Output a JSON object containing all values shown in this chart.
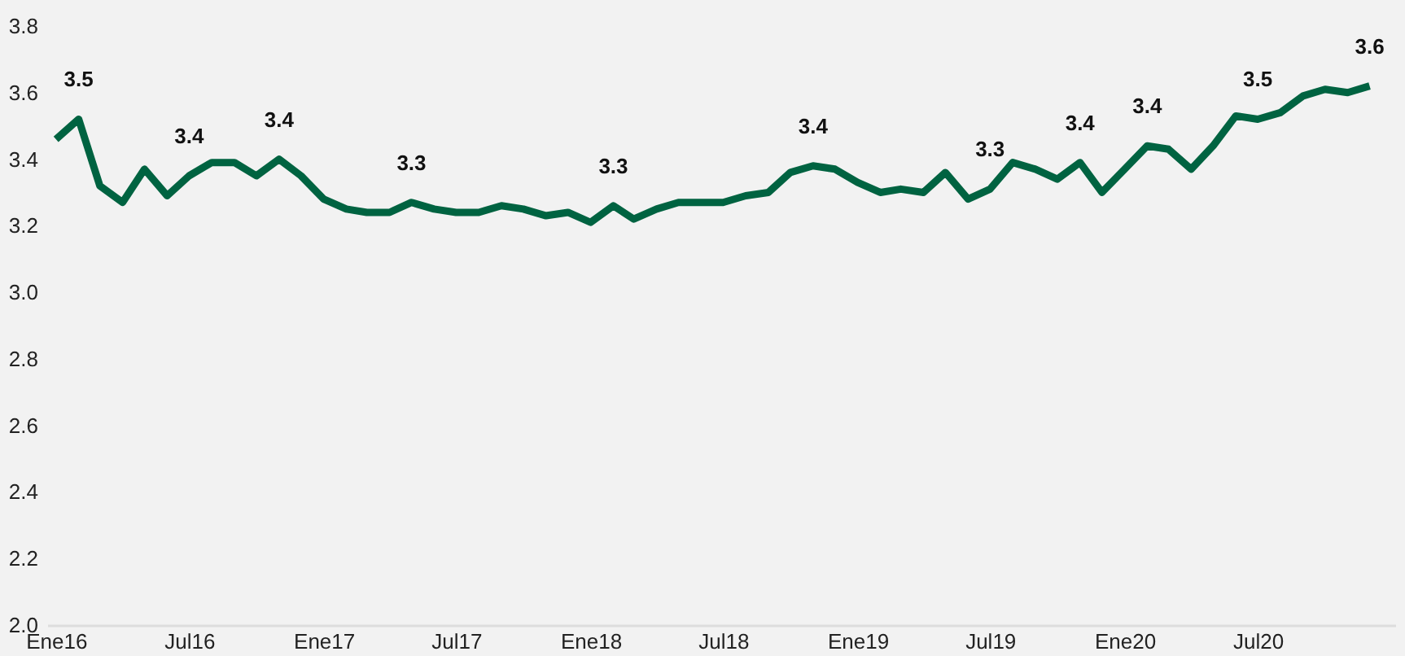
{
  "chart_data": {
    "type": "line",
    "x": [
      "2016-01",
      "2016-02",
      "2016-03",
      "2016-04",
      "2016-05",
      "2016-06",
      "2016-07",
      "2016-08",
      "2016-09",
      "2016-10",
      "2016-11",
      "2016-12",
      "2017-01",
      "2017-02",
      "2017-03",
      "2017-04",
      "2017-05",
      "2017-06",
      "2017-07",
      "2017-08",
      "2017-09",
      "2017-10",
      "2017-11",
      "2017-12",
      "2018-01",
      "2018-02",
      "2018-03",
      "2018-04",
      "2018-05",
      "2018-06",
      "2018-07",
      "2018-08",
      "2018-09",
      "2018-10",
      "2018-11",
      "2018-12",
      "2019-01",
      "2019-02",
      "2019-03",
      "2019-04",
      "2019-05",
      "2019-06",
      "2019-07",
      "2019-08",
      "2019-09",
      "2019-10",
      "2019-11",
      "2019-12",
      "2020-01",
      "2020-02",
      "2020-03",
      "2020-04",
      "2020-05",
      "2020-06",
      "2020-07",
      "2020-08",
      "2020-09",
      "2020-10",
      "2020-11",
      "2020-12"
    ],
    "series": [
      {
        "color": "#006341",
        "values": [
          3.46,
          3.52,
          3.32,
          3.27,
          3.37,
          3.29,
          3.35,
          3.39,
          3.39,
          3.35,
          3.4,
          3.35,
          3.28,
          3.25,
          3.24,
          3.24,
          3.27,
          3.25,
          3.24,
          3.24,
          3.26,
          3.25,
          3.23,
          3.24,
          3.21,
          3.26,
          3.22,
          3.25,
          3.27,
          3.27,
          3.27,
          3.29,
          3.3,
          3.36,
          3.38,
          3.37,
          3.33,
          3.3,
          3.31,
          3.3,
          3.36,
          3.28,
          3.31,
          3.39,
          3.37,
          3.34,
          3.39,
          3.3,
          3.37,
          3.44,
          3.43,
          3.37,
          3.44,
          3.53,
          3.52,
          3.54,
          3.59,
          3.61,
          3.6,
          3.62
        ]
      }
    ],
    "xlim": [
      "2015-12-20",
      "2021-01-05"
    ],
    "xticks": [
      {
        "value": "2016-01",
        "label": "Ene16"
      },
      {
        "value": "2016-07",
        "label": "Jul16"
      },
      {
        "value": "2017-01",
        "label": "Ene17"
      },
      {
        "value": "2017-07",
        "label": "Jul17"
      },
      {
        "value": "2018-01",
        "label": "Ene18"
      },
      {
        "value": "2018-07",
        "label": "Jul18"
      },
      {
        "value": "2019-01",
        "label": "Ene19"
      },
      {
        "value": "2019-07",
        "label": "Jul19"
      },
      {
        "value": "2020-01",
        "label": "Ene20"
      },
      {
        "value": "2020-07",
        "label": "Jul20"
      }
    ],
    "ylim": [
      2.0,
      3.8
    ],
    "yticks": [
      {
        "value": 2,
        "label": "2.0"
      },
      2.2,
      2.4,
      2.6,
      2.8,
      {
        "value": 3,
        "label": "3.0"
      },
      3.2,
      3.4,
      3.6,
      3.8
    ],
    "grid": false,
    "marker": "none",
    "line_style": "solid",
    "annotations": [
      {
        "text": "3.5",
        "x": "2016-02",
        "y": 3.52
      },
      {
        "text": "3.4",
        "x": "2016-07",
        "y": 3.35
      },
      {
        "text": "3.4",
        "x": "2016-11",
        "y": 3.4
      },
      {
        "text": "3.3",
        "x": "2017-05",
        "y": 3.27
      },
      {
        "text": "3.3",
        "x": "2018-02",
        "y": 3.26
      },
      {
        "text": "3.4",
        "x": "2018-11",
        "y": 3.38
      },
      {
        "text": "3.3",
        "x": "2019-07",
        "y": 3.31
      },
      {
        "text": "3.4",
        "x": "2019-11",
        "y": 3.39
      },
      {
        "text": "3.4",
        "x": "2020-02",
        "y": 3.44
      },
      {
        "text": "3.5",
        "x": "2020-07",
        "y": 3.52
      },
      {
        "text": "3.6",
        "x": "2020-12",
        "y": 3.62
      }
    ]
  }
}
